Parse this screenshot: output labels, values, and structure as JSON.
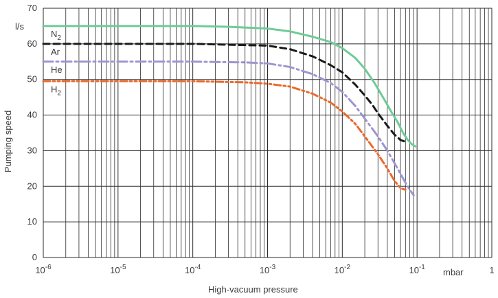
{
  "chart_data": {
    "type": "line",
    "title": "",
    "xlabel": "High-vacuum pressure",
    "ylabel": "Pumping speed",
    "x_unit": "mbar",
    "y_unit": "l/s",
    "x_scale": "log",
    "xlim": [
      1e-06,
      1
    ],
    "ylim": [
      0,
      70
    ],
    "grid": true,
    "legend": "inline labels at left",
    "x_ticks": [
      {
        "value": 1e-06,
        "base": "10",
        "exp": "-6"
      },
      {
        "value": 1e-05,
        "base": "10",
        "exp": "-5"
      },
      {
        "value": 0.0001,
        "base": "10",
        "exp": "-4"
      },
      {
        "value": 0.001,
        "base": "10",
        "exp": "-3"
      },
      {
        "value": 0.01,
        "base": "10",
        "exp": "-2"
      },
      {
        "value": 0.1,
        "base": "10",
        "exp": "-1"
      },
      {
        "value": 1,
        "base": "1",
        "exp": ""
      }
    ],
    "y_ticks": [
      0,
      10,
      20,
      30,
      40,
      50,
      60,
      70
    ],
    "series": [
      {
        "name": "N2",
        "label_main": "N",
        "label_sub": "2",
        "color": "#6ecb96",
        "dash": "solid",
        "x": [
          1e-06,
          0.0001,
          0.0003,
          0.001,
          0.002,
          0.004,
          0.007,
          0.01,
          0.015,
          0.02,
          0.027,
          0.035,
          0.045,
          0.055,
          0.065,
          0.075,
          0.085,
          0.095
        ],
        "y": [
          65,
          65,
          64.8,
          64.3,
          63.5,
          62,
          60.5,
          58.8,
          56,
          53,
          49,
          45,
          41,
          38,
          35,
          33,
          31.8,
          31.2
        ]
      },
      {
        "name": "Ar",
        "label_main": "Ar",
        "label_sub": "",
        "color": "#1a1a1a",
        "dash": "dash",
        "x": [
          1e-06,
          0.0001,
          0.001,
          0.002,
          0.004,
          0.007,
          0.01,
          0.015,
          0.02,
          0.025,
          0.03,
          0.04,
          0.05,
          0.06,
          0.07
        ],
        "y": [
          60,
          60,
          59.5,
          58.5,
          56.5,
          54,
          52,
          48.5,
          45.5,
          43,
          40.5,
          37,
          34.5,
          33,
          32.5
        ]
      },
      {
        "name": "He",
        "label_main": "He",
        "label_sub": "",
        "color": "#9b96cf",
        "dash": "dashdot",
        "x": [
          1e-06,
          0.0001,
          0.0005,
          0.001,
          0.002,
          0.004,
          0.007,
          0.01,
          0.015,
          0.02,
          0.03,
          0.04,
          0.05,
          0.06,
          0.07,
          0.08,
          0.09
        ],
        "y": [
          55,
          55,
          54.8,
          54.5,
          53.5,
          51.5,
          49,
          46.5,
          42.5,
          39,
          34,
          30,
          26.5,
          23.5,
          21,
          19,
          17.5
        ]
      },
      {
        "name": "H2",
        "label_main": "H",
        "label_sub": "2",
        "color": "#ea6a2c",
        "dash": "dashdotdot",
        "x": [
          1e-06,
          0.0001,
          0.0005,
          0.001,
          0.002,
          0.004,
          0.007,
          0.01,
          0.015,
          0.02,
          0.03,
          0.04,
          0.05,
          0.06,
          0.07
        ],
        "y": [
          49.5,
          49.5,
          49.2,
          48.8,
          48,
          46,
          43.5,
          41,
          37.5,
          34,
          29,
          25,
          21.5,
          19.5,
          19
        ]
      }
    ]
  }
}
